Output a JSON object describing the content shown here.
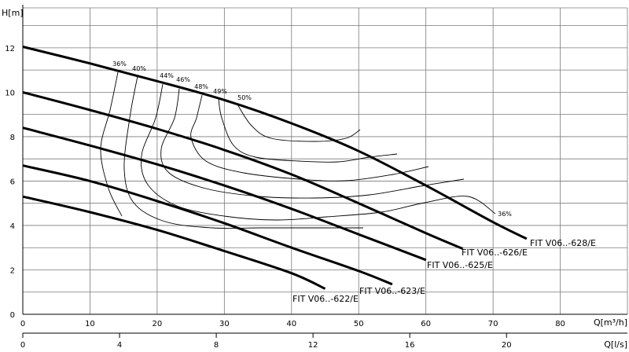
{
  "chart_data": {
    "type": "line",
    "ylabel": "H[m]",
    "xlabel": "Q[m³/h]",
    "xlabel2": "Q[l/s]",
    "xlim": [
      0,
      90
    ],
    "ylim": [
      0,
      13.8
    ],
    "x_ticks": [
      0,
      10,
      20,
      30,
      40,
      50,
      60,
      70,
      80
    ],
    "x2_ticks": [
      0,
      4,
      8,
      12,
      16,
      20
    ],
    "y_ticks": [
      0,
      2,
      4,
      6,
      8,
      10,
      12
    ],
    "grid": true,
    "series": [
      {
        "name": "FIT V06..-628/E",
        "x": [
          0,
          10,
          20,
          30,
          40,
          50,
          60,
          70,
          75
        ],
        "y": [
          12.05,
          11.3,
          10.5,
          9.65,
          8.6,
          7.35,
          5.8,
          4.15,
          3.4
        ]
      },
      {
        "name": "FIT V06..-626/E",
        "x": [
          0,
          10,
          20,
          30,
          40,
          50,
          60,
          65.5
        ],
        "y": [
          10,
          9.2,
          8.35,
          7.4,
          6.3,
          5.0,
          3.65,
          2.95
        ]
      },
      {
        "name": "FIT V06..-625/E",
        "x": [
          0,
          10,
          20,
          30,
          40,
          50,
          60
        ],
        "y": [
          8.4,
          7.6,
          6.75,
          5.8,
          4.75,
          3.6,
          2.45
        ]
      },
      {
        "name": "FIT V06..-623/E",
        "x": [
          0,
          10,
          20,
          30,
          40,
          50,
          55
        ],
        "y": [
          6.7,
          6.0,
          5.1,
          4.1,
          3.0,
          1.95,
          1.35
        ]
      },
      {
        "name": "FIT V06..-622/E",
        "x": [
          0,
          10,
          20,
          30,
          40,
          45
        ],
        "y": [
          5.3,
          4.6,
          3.8,
          2.85,
          1.85,
          1.15
        ]
      }
    ],
    "efficiency_labels": [
      "36%",
      "40%",
      "44%",
      "46%",
      "48%",
      "49%",
      "50%",
      "36%"
    ]
  }
}
